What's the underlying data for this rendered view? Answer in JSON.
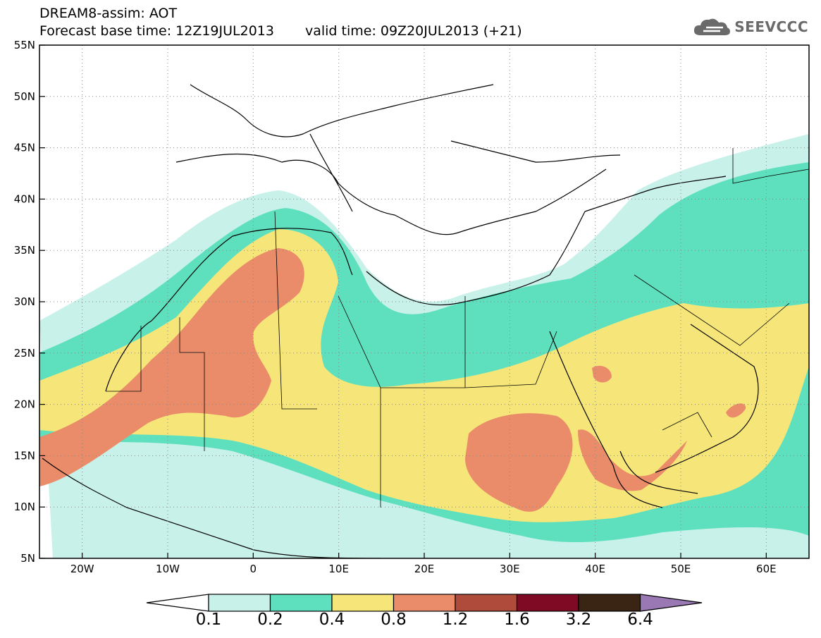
{
  "title": {
    "line1": "DREAM8-assim: AOT",
    "base_time": "Forecast base time: 12Z19JUL2013",
    "valid_time": "valid time: 09Z20JUL2013 (+21)"
  },
  "logo": {
    "icon": "cloud-logo-icon",
    "text": "SEEVCCC"
  },
  "map": {
    "lon_range": [
      -25,
      65
    ],
    "lat_range": [
      5,
      55
    ],
    "lat_ticks": [
      "5N",
      "10N",
      "15N",
      "20N",
      "25N",
      "30N",
      "35N",
      "40N",
      "45N",
      "50N",
      "55N"
    ],
    "lon_ticks": [
      "20W",
      "10W",
      "0",
      "10E",
      "20E",
      "30E",
      "40E",
      "50E",
      "60E"
    ],
    "lon_tick_values": [
      -20,
      -10,
      0,
      10,
      20,
      30,
      40,
      50,
      60
    ],
    "lat_tick_values": [
      5,
      10,
      15,
      20,
      25,
      30,
      35,
      40,
      45,
      50,
      55
    ],
    "grid": "dotted"
  },
  "colorbar": {
    "levels": [
      "0.1",
      "0.2",
      "0.4",
      "0.8",
      "1.2",
      "1.6",
      "3.2",
      "6.4"
    ],
    "under_color": "#ffffff",
    "colors": [
      "#c8f1ea",
      "#5ee0be",
      "#f6e67a",
      "#ea8c69",
      "#ae4b3a",
      "#7e0a24",
      "#3a2414"
    ],
    "over_color": "#9a78b4"
  }
}
